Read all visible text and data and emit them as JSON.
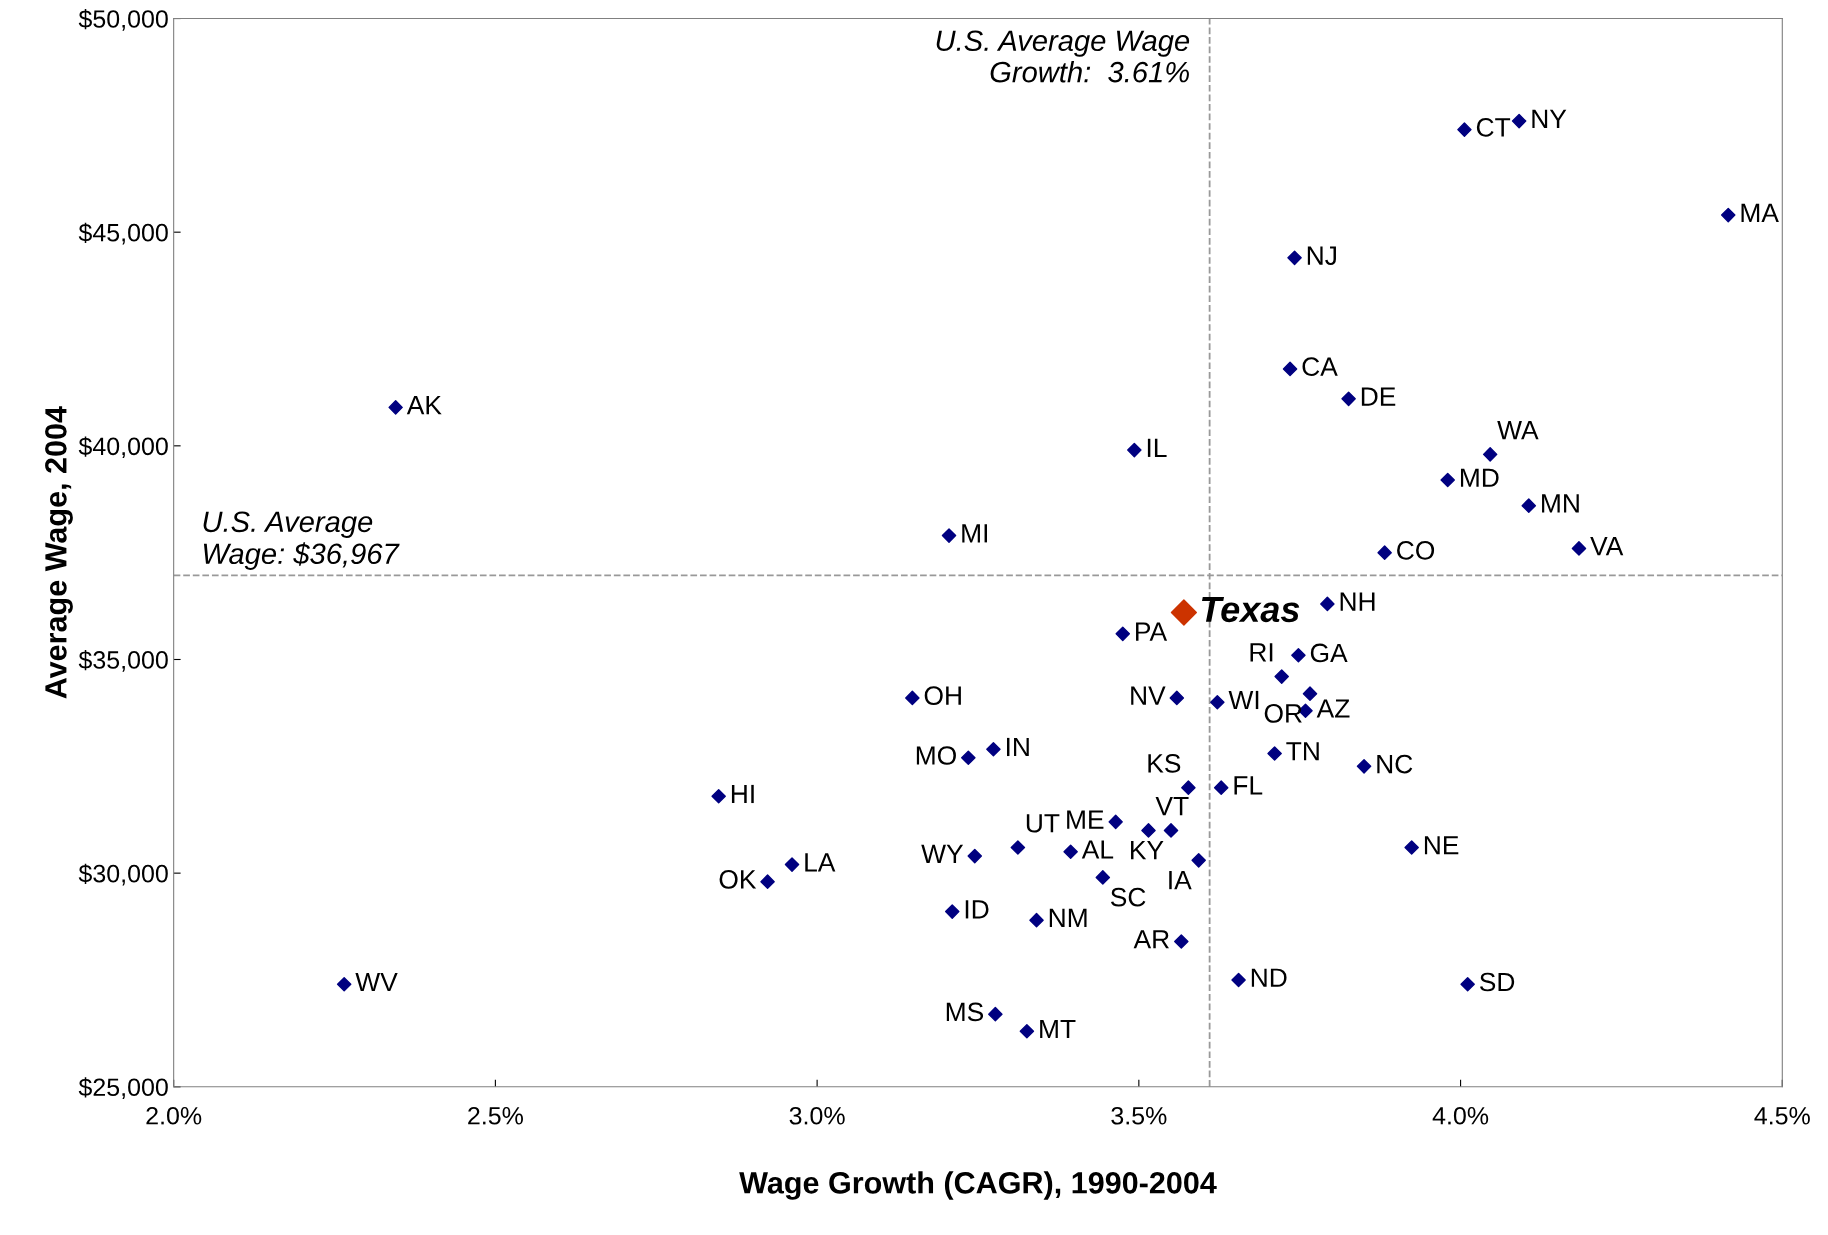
{
  "chart_data": {
    "type": "scatter",
    "xlabel": "Wage Growth (CAGR), 1990-2004",
    "ylabel": "Average Wage, 2004",
    "xlim": [
      2.0,
      4.5
    ],
    "xticks": [
      {
        "value": 2.0,
        "label": "2.0%"
      },
      {
        "value": 2.5,
        "label": "2.5%"
      },
      {
        "value": 3.0,
        "label": "3.0%"
      },
      {
        "value": 3.5,
        "label": "3.5%"
      },
      {
        "value": 4.0,
        "label": "4.0%"
      },
      {
        "value": 4.5,
        "label": "4.5%"
      }
    ],
    "ylim": [
      25000,
      50000
    ],
    "yticks": [
      {
        "value": 25000,
        "label": "$25,000"
      },
      {
        "value": 30000,
        "label": "$30,000"
      },
      {
        "value": 35000,
        "label": "$35,000"
      },
      {
        "value": 40000,
        "label": "$40,000"
      },
      {
        "value": 45000,
        "label": "$45,000"
      },
      {
        "value": 50000,
        "label": "$50,000"
      }
    ],
    "grid": false,
    "marker": "diamond",
    "series": [
      {
        "color": "#000080",
        "x": [
          2.345,
          2.265,
          2.847,
          2.961,
          2.923,
          3.148,
          3.205,
          3.235,
          3.274,
          3.245,
          3.21,
          3.277,
          3.326,
          3.341,
          3.312,
          3.394,
          3.444,
          3.464,
          3.515,
          3.55,
          3.475,
          3.493,
          3.559,
          3.577,
          3.566,
          3.593,
          3.622,
          3.628,
          3.655,
          3.711,
          3.722,
          3.735,
          3.742,
          3.748,
          3.759,
          3.766,
          3.793,
          3.826,
          3.85,
          3.882,
          3.924,
          3.98,
          4.006,
          4.011,
          4.046,
          4.091,
          4.106,
          4.184,
          4.416
        ],
        "values": [
          40900,
          27400,
          31800,
          30200,
          29800,
          34100,
          37900,
          32700,
          32900,
          30400,
          29100,
          26700,
          26300,
          28900,
          30600,
          30500,
          29900,
          31200,
          31000,
          31000,
          35600,
          39900,
          34100,
          32000,
          28400,
          30300,
          34000,
          32000,
          27500,
          32800,
          34600,
          41800,
          44400,
          35100,
          33800,
          34200,
          36300,
          41100,
          32500,
          37500,
          30600,
          39200,
          47400,
          27400,
          39800,
          47600,
          38600,
          37600,
          45400
        ],
        "value_labels": [
          "AK",
          "WV",
          "HI",
          "LA",
          "OK",
          "OH",
          "MI",
          "MO",
          "IN",
          "WY",
          "ID",
          "MS",
          "MT",
          "NM",
          "UT",
          "AL",
          "SC",
          "ME",
          "VT",
          "KY",
          "PA",
          "IL",
          "NV",
          "KS",
          "AR",
          "IA",
          "WI",
          "FL",
          "ND",
          "TN",
          "RI",
          "CA",
          "NJ",
          "GA",
          "AZ",
          "OR",
          "NH",
          "DE",
          "NC",
          "CO",
          "NE",
          "MD",
          "CT",
          "SD",
          "WA",
          "NY",
          "MN",
          "VA",
          "MA"
        ]
      },
      {
        "color": "#cc3300",
        "x": [
          3.57
        ],
        "values": [
          36100
        ],
        "value_labels": [
          "Texas"
        ]
      }
    ],
    "ref_lines": [
      {
        "axis": "x",
        "value": 3.61,
        "label": "U.S. Average Wage\nGrowth:  3.61%",
        "color": "#999999",
        "line_style": "dashed"
      },
      {
        "axis": "y",
        "value": 36967,
        "label": "U.S. Average\nWage: $36,967",
        "color": "#999999",
        "line_style": "dashed"
      }
    ]
  }
}
